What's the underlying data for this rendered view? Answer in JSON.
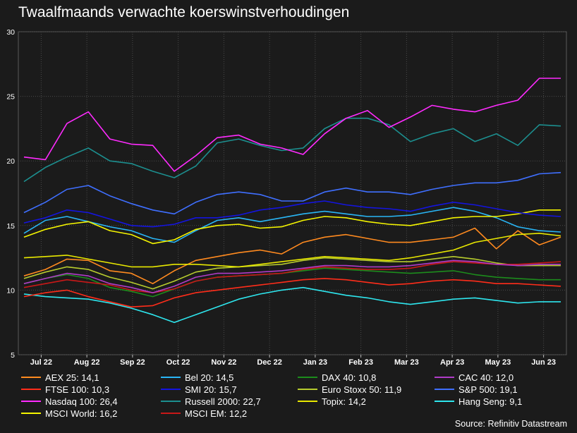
{
  "title": "Twaalfmaands verwachte koerswinstverhoudingen",
  "source": "Source: Refinitiv Datastream",
  "chart_data": {
    "type": "line",
    "title": "Twaalfmaands verwachte koerswinstverhoudingen",
    "x_ticks": [
      "Jul 22",
      "Aug 22",
      "Sep 22",
      "Oct 22",
      "Nov 22",
      "Dec 22",
      "Jan 23",
      "Feb 23",
      "Mar 23",
      "Apr 23",
      "May 23",
      "Jun 23"
    ],
    "x_range": [
      "Jul 2022",
      "Jun 2023"
    ],
    "ylim": [
      5,
      30
    ],
    "y_ticks": [
      5,
      10,
      15,
      20,
      25,
      30
    ],
    "grid": true,
    "legend_position": "bottom",
    "series": [
      {
        "name": "Nasdaq 100: 26,4",
        "color": "#ff2bff",
        "values": [
          20.3,
          20.1,
          22.9,
          23.8,
          21.7,
          21.3,
          21.2,
          19.2,
          20.4,
          21.8,
          22.0,
          21.3,
          21.0,
          20.5,
          22.1,
          23.3,
          23.9,
          22.6,
          23.4,
          24.3,
          24.0,
          23.8,
          24.3,
          24.7,
          26.4,
          26.4
        ]
      },
      {
        "name": "Russell 2000: 22,7",
        "color": "#1c8f8f",
        "values": [
          18.4,
          19.5,
          20.3,
          21.0,
          20.0,
          19.8,
          19.2,
          18.7,
          19.6,
          21.4,
          21.7,
          21.2,
          20.8,
          21.0,
          22.5,
          23.3,
          23.3,
          22.8,
          21.5,
          22.1,
          22.5,
          21.5,
          22.1,
          21.2,
          22.8,
          22.7
        ]
      },
      {
        "name": "S&P 500: 19,1",
        "color": "#3f6fff",
        "values": [
          16.0,
          16.8,
          17.8,
          18.1,
          17.3,
          16.7,
          16.2,
          15.9,
          16.8,
          17.4,
          17.6,
          17.4,
          16.9,
          16.9,
          17.6,
          17.9,
          17.6,
          17.6,
          17.4,
          17.8,
          18.1,
          18.3,
          18.3,
          18.5,
          19.0,
          19.1
        ]
      },
      {
        "name": "SMI 20: 15,7",
        "color": "#1414e0",
        "values": [
          15.2,
          15.6,
          16.2,
          16.0,
          15.5,
          15.0,
          14.9,
          15.1,
          15.6,
          15.6,
          15.8,
          16.2,
          16.4,
          16.7,
          16.9,
          16.6,
          16.4,
          16.3,
          16.1,
          16.5,
          16.8,
          16.6,
          16.3,
          16.0,
          15.8,
          15.7
        ]
      },
      {
        "name": "MSCI World: 16,2",
        "color": "#f5f500",
        "values": [
          14.1,
          14.7,
          15.1,
          15.3,
          14.6,
          14.3,
          13.6,
          13.9,
          14.7,
          15.0,
          15.1,
          14.8,
          14.9,
          15.4,
          15.7,
          15.6,
          15.3,
          15.1,
          15.0,
          15.3,
          15.6,
          15.7,
          15.7,
          15.9,
          16.2,
          16.2
        ]
      },
      {
        "name": "Bel 20: 14,5",
        "color": "#29b6f6",
        "values": [
          14.4,
          15.4,
          15.7,
          15.3,
          14.9,
          14.6,
          14.0,
          13.7,
          14.6,
          15.4,
          15.6,
          15.3,
          15.6,
          15.9,
          16.1,
          15.9,
          15.7,
          15.7,
          15.8,
          16.1,
          16.4,
          16.1,
          15.6,
          14.9,
          14.6,
          14.5
        ]
      },
      {
        "name": "Topix: 14,2",
        "color": "#e8e800",
        "values": [
          12.5,
          12.6,
          12.7,
          12.4,
          12.1,
          11.8,
          11.8,
          12.0,
          12.0,
          11.9,
          11.8,
          12.0,
          12.2,
          12.4,
          12.6,
          12.5,
          12.4,
          12.3,
          12.5,
          12.8,
          13.1,
          13.7,
          14.0,
          14.3,
          14.4,
          14.2
        ]
      },
      {
        "name": "AEX 25: 14,1",
        "color": "#ff8a1f",
        "values": [
          11.1,
          11.6,
          12.4,
          12.3,
          11.5,
          11.3,
          10.5,
          11.5,
          12.3,
          12.6,
          12.9,
          13.1,
          12.8,
          13.7,
          14.1,
          14.3,
          14.0,
          13.7,
          13.7,
          13.9,
          14.1,
          14.8,
          13.2,
          14.6,
          13.5,
          14.1
        ]
      },
      {
        "name": "CAC 40: 12,0",
        "color": "#b03cc8",
        "values": [
          10.5,
          10.9,
          11.3,
          11.1,
          10.5,
          10.2,
          9.8,
          10.3,
          11.0,
          11.3,
          11.3,
          11.4,
          11.5,
          11.7,
          11.9,
          11.9,
          11.8,
          11.8,
          11.9,
          12.1,
          12.3,
          12.2,
          12.0,
          11.9,
          12.0,
          12.0
        ]
      },
      {
        "name": "MSCI EM: 12,2",
        "color": "#c81818",
        "values": [
          10.2,
          10.5,
          10.8,
          10.6,
          10.4,
          10.0,
          9.8,
          10.1,
          10.7,
          11.0,
          11.1,
          11.2,
          11.3,
          11.6,
          11.8,
          11.7,
          11.6,
          11.6,
          11.7,
          12.0,
          12.2,
          12.1,
          12.0,
          12.0,
          12.1,
          12.2
        ]
      },
      {
        "name": "Euro Stoxx 50: 11,9",
        "color": "#b8cc2e",
        "values": [
          10.9,
          11.4,
          11.8,
          11.6,
          11.0,
          10.6,
          10.1,
          10.7,
          11.4,
          11.7,
          11.8,
          11.9,
          12.0,
          12.3,
          12.5,
          12.4,
          12.3,
          12.2,
          12.2,
          12.4,
          12.6,
          12.4,
          12.1,
          11.9,
          11.9,
          11.9
        ]
      },
      {
        "name": "DAX 40: 10,8",
        "color": "#1c8c1c",
        "values": [
          10.5,
          10.9,
          11.2,
          10.9,
          10.2,
          9.9,
          9.5,
          10.1,
          10.7,
          11.0,
          11.1,
          11.2,
          11.3,
          11.5,
          11.7,
          11.6,
          11.5,
          11.4,
          11.3,
          11.4,
          11.5,
          11.2,
          11.0,
          10.9,
          10.8,
          10.8
        ]
      },
      {
        "name": "FTSE 100: 10,3",
        "color": "#ff2d1a",
        "values": [
          9.5,
          9.8,
          10.0,
          9.5,
          9.1,
          8.7,
          8.8,
          9.4,
          9.8,
          10.0,
          10.2,
          10.4,
          10.6,
          10.8,
          10.9,
          10.8,
          10.6,
          10.4,
          10.5,
          10.7,
          10.8,
          10.7,
          10.5,
          10.5,
          10.4,
          10.3
        ]
      },
      {
        "name": "Hang Seng: 9,1",
        "color": "#2ee6ee",
        "values": [
          9.7,
          9.5,
          9.4,
          9.3,
          9.0,
          8.6,
          8.1,
          7.5,
          8.1,
          8.7,
          9.3,
          9.7,
          10.0,
          10.2,
          9.9,
          9.6,
          9.4,
          9.1,
          8.9,
          9.1,
          9.3,
          9.4,
          9.2,
          9.0,
          9.1,
          9.1
        ]
      }
    ]
  },
  "legend": [
    {
      "label": "AEX 25: 14,1",
      "color": "#ff8a1f"
    },
    {
      "label": "Bel 20: 14,5",
      "color": "#29b6f6"
    },
    {
      "label": "DAX 40: 10,8",
      "color": "#1c8c1c"
    },
    {
      "label": "CAC 40: 12,0",
      "color": "#b03cc8"
    },
    {
      "label": "FTSE 100: 10,3",
      "color": "#ff2d1a"
    },
    {
      "label": "SMI 20: 15,7",
      "color": "#1414e0"
    },
    {
      "label": "Euro Stoxx 50: 11,9",
      "color": "#b8cc2e"
    },
    {
      "label": "S&P 500: 19,1",
      "color": "#3f6fff"
    },
    {
      "label": "Nasdaq 100: 26,4",
      "color": "#ff2bff"
    },
    {
      "label": "Russell 2000: 22,7",
      "color": "#1c8f8f"
    },
    {
      "label": "Topix: 14,2",
      "color": "#e8e800"
    },
    {
      "label": "Hang Seng: 9,1",
      "color": "#2ee6ee"
    },
    {
      "label": "MSCI World: 16,2",
      "color": "#f5f500"
    },
    {
      "label": "MSCI EM: 12,2",
      "color": "#c81818"
    }
  ]
}
